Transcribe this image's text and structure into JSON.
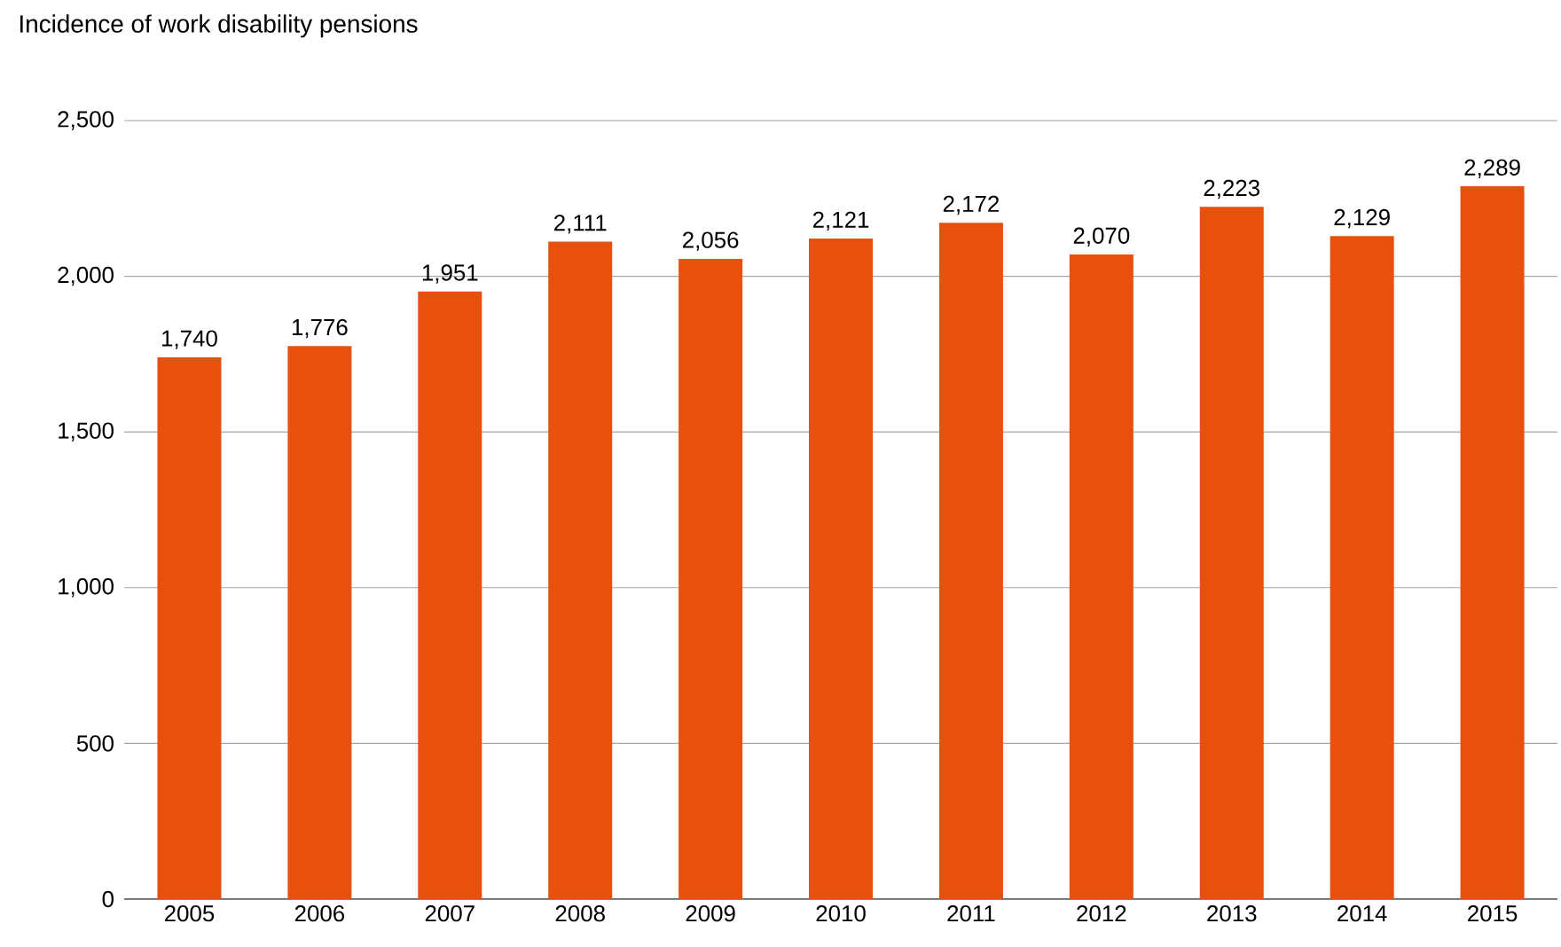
{
  "chart_data": {
    "type": "bar",
    "title": "Incidence of work disability pensions",
    "categories": [
      "2005",
      "2006",
      "2007",
      "2008",
      "2009",
      "2010",
      "2011",
      "2012",
      "2013",
      "2014",
      "2015"
    ],
    "values": [
      1740,
      1776,
      1951,
      2111,
      2056,
      2121,
      2172,
      2070,
      2223,
      2129,
      2289
    ],
    "value_labels": [
      "1,740",
      "1,776",
      "1,951",
      "2,111",
      "2,056",
      "2,121",
      "2,172",
      "2,070",
      "2,223",
      "2,129",
      "2,289"
    ],
    "color": "#e8500e",
    "ylim": [
      0,
      2500
    ],
    "yticks": [
      {
        "value": 0,
        "label": "0"
      },
      {
        "value": 500,
        "label": "500"
      },
      {
        "value": 1000,
        "label": "1,000"
      },
      {
        "value": 1500,
        "label": "1,500"
      },
      {
        "value": 2000,
        "label": "2,000"
      },
      {
        "value": 2500,
        "label": "2,500"
      }
    ],
    "grid": "y"
  }
}
